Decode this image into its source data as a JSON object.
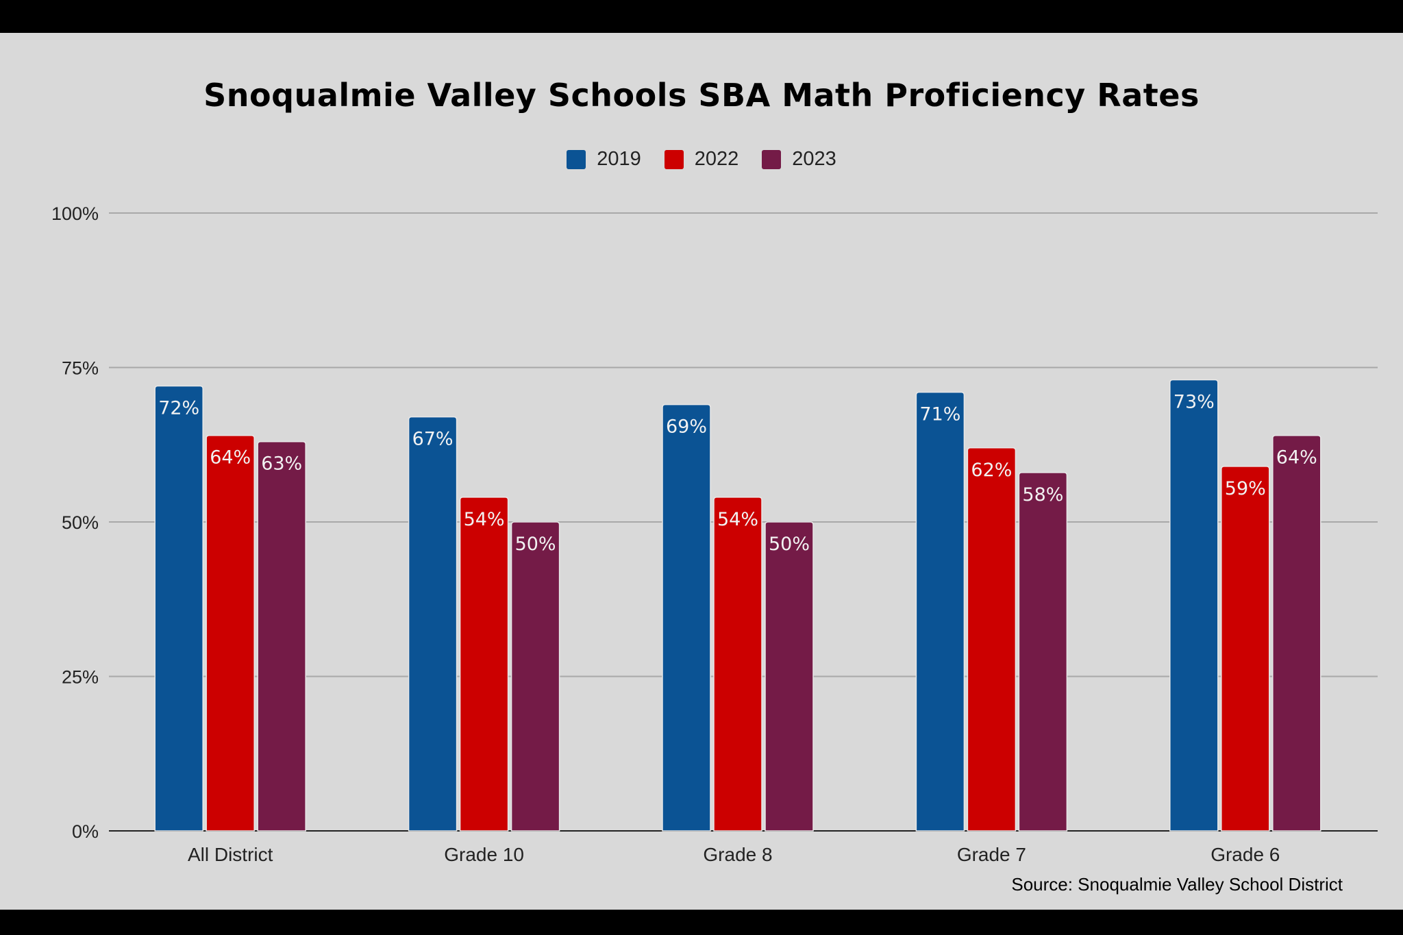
{
  "chart_data": {
    "type": "bar",
    "title": "Snoqualmie Valley Schools SBA Math Proficiency Rates",
    "categories": [
      "All District",
      "Grade 10",
      "Grade 8",
      "Grade 7",
      "Grade 6"
    ],
    "series": [
      {
        "name": "2019",
        "color": "#0b5394",
        "values": [
          72,
          67,
          69,
          71,
          73
        ]
      },
      {
        "name": "2022",
        "color": "#cc0000",
        "values": [
          64,
          54,
          54,
          62,
          59
        ]
      },
      {
        "name": "2023",
        "color": "#741b47",
        "values": [
          63,
          50,
          50,
          58,
          64
        ]
      }
    ],
    "ylim": [
      0,
      100
    ],
    "yticks": [
      0,
      25,
      50,
      75,
      100
    ],
    "ytick_labels": [
      "0%",
      "25%",
      "50%",
      "75%",
      "100%"
    ],
    "xlabel": "",
    "ylabel": "",
    "grid": true,
    "legend_position": "top-center",
    "source": "Source: Snoqualmie Valley School District"
  }
}
